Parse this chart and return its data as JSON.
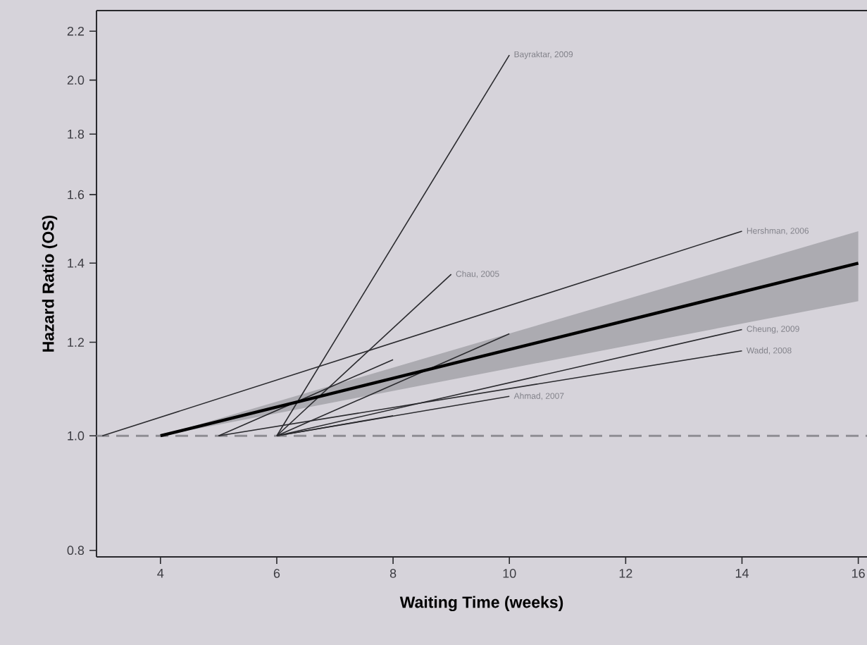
{
  "chart_data": {
    "type": "line",
    "xlabel": "Waiting Time (weeks)",
    "ylabel": "Hazard Ratio (OS)",
    "xlim": [
      2.9,
      16.15
    ],
    "ylim": [
      0.79,
      2.29
    ],
    "log": "y",
    "xticks": [
      4,
      6,
      8,
      10,
      12,
      14,
      16
    ],
    "yticks": [
      0.8,
      {
        "value": 1.0,
        "label": "1.0"
      },
      1.2,
      1.4,
      1.6,
      1.8,
      {
        "value": 2.0,
        "label": "2.0"
      },
      2.2
    ],
    "grid": false,
    "marker": "none",
    "line_style": "solid",
    "ref_lines": [
      {
        "axis": "y",
        "value": 1.0,
        "color": "#8e8d93",
        "line_style": "dashed"
      }
    ],
    "series": [
      {
        "name": "Bayraktar, 2009",
        "color": "#2a2a2e",
        "x": [
          6,
          10
        ],
        "values": [
          1.0,
          2.1
        ]
      },
      {
        "name": "Chau, 2005",
        "color": "#2a2a2e",
        "x": [
          6,
          9
        ],
        "values": [
          1.0,
          1.37
        ]
      },
      {
        "name": "Hershman, 2006",
        "color": "#2a2a2e",
        "x": [
          3,
          14
        ],
        "values": [
          1.0,
          1.49
        ]
      },
      {
        "color": "#2a2a2e",
        "x": [
          6,
          10
        ],
        "values": [
          1.0,
          1.22
        ]
      },
      {
        "color": "#2a2a2e",
        "x": [
          5,
          8
        ],
        "values": [
          1.0,
          1.16
        ]
      },
      {
        "name": "Cheung, 2009",
        "color": "#2a2a2e",
        "x": [
          6,
          14
        ],
        "values": [
          1.0,
          1.23
        ]
      },
      {
        "name": "Wadd, 2008",
        "color": "#2a2a2e",
        "x": [
          5,
          14
        ],
        "values": [
          1.0,
          1.18
        ]
      },
      {
        "name": "Ahmad, 2007",
        "color": "#2a2a2e",
        "x": [
          6,
          10
        ],
        "values": [
          1.0,
          1.08
        ]
      },
      {
        "color": "#2a2a2e",
        "x": [
          6,
          8
        ],
        "values": [
          1.0,
          1.04
        ]
      },
      {
        "color": "#000000",
        "x": [
          4,
          16
        ],
        "values": [
          1.0,
          1.4
        ],
        "lower": [
          1.0,
          1.3
        ],
        "upper": [
          1.0,
          1.49
        ]
      }
    ]
  }
}
